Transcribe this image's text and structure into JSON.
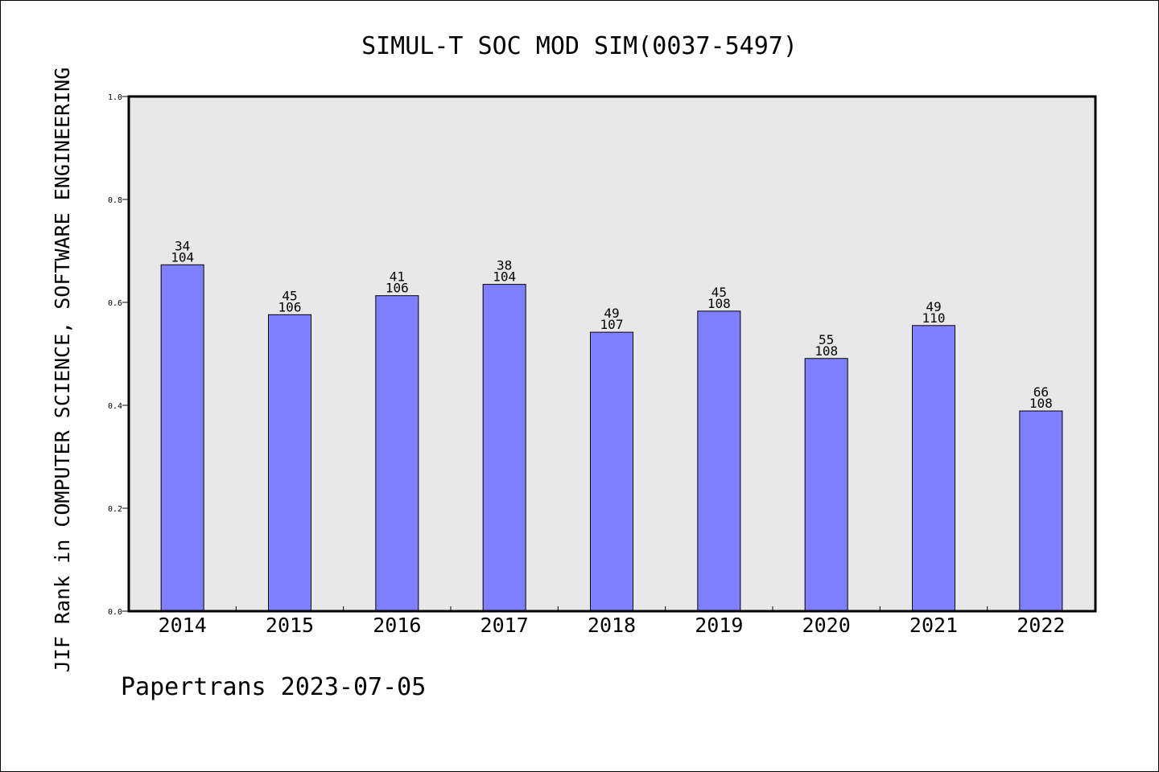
{
  "chart_data": {
    "type": "bar",
    "title": "SIMUL-T SOC MOD SIM(0037-5497)",
    "ylabel": "JIF Rank in COMPUTER SCIENCE, SOFTWARE ENGINEERING",
    "xlabel": "",
    "footer": "Papertrans 2023-07-05",
    "categories": [
      "2014",
      "2015",
      "2016",
      "2017",
      "2018",
      "2019",
      "2020",
      "2021",
      "2022"
    ],
    "values": [
      0.673,
      0.576,
      0.613,
      0.635,
      0.542,
      0.583,
      0.491,
      0.555,
      0.389
    ],
    "rank_labels": [
      "34",
      "45",
      "41",
      "38",
      "49",
      "45",
      "55",
      "49",
      "66"
    ],
    "total_labels": [
      "104",
      "106",
      "106",
      "104",
      "107",
      "108",
      "108",
      "110",
      "108"
    ],
    "yticks": [
      "0.0",
      "0.2",
      "0.4",
      "0.6",
      "0.8",
      "1.0"
    ],
    "ylim": [
      0,
      1
    ],
    "grid": false,
    "colors": {
      "bar": "#8080ff",
      "plot_bg": "#e8e8e8",
      "axis": "#000000"
    }
  }
}
